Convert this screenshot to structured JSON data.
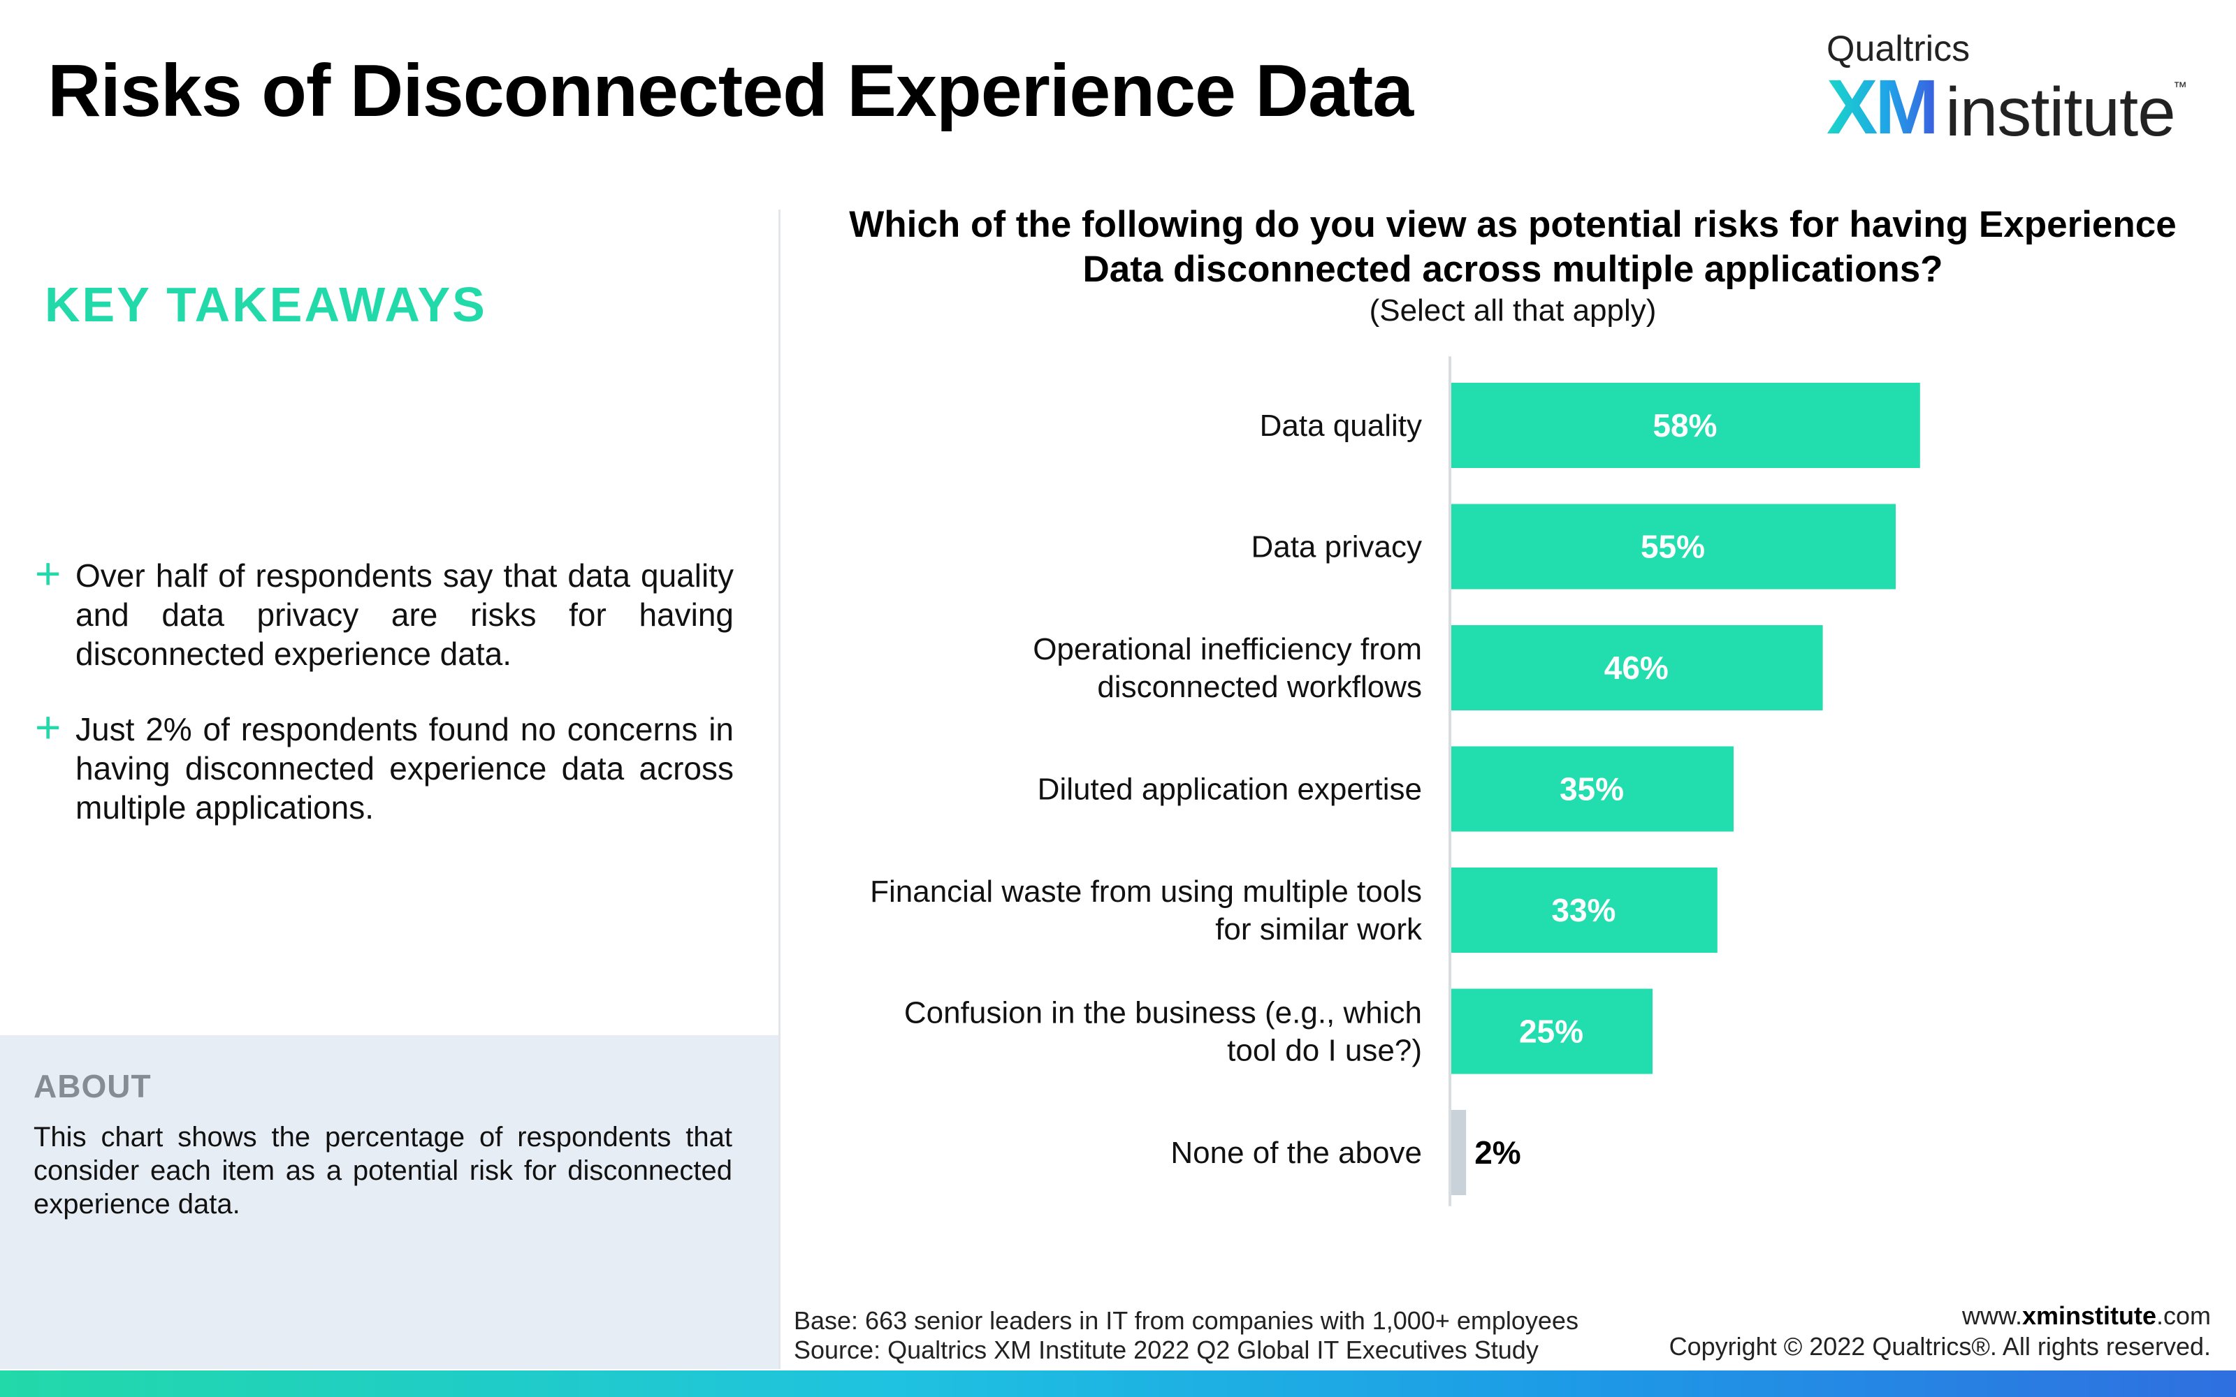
{
  "page": {
    "title": "Risks of Disconnected Experience Data"
  },
  "logo": {
    "brand": "Qualtrics",
    "xm": "XM",
    "institute": "institute",
    "tm": "™"
  },
  "takeaways": {
    "title": "KEY TAKEAWAYS",
    "items": [
      "Over half of respondents say that data quality and data privacy are risks for having disconnected experience data.",
      "Just 2% of respondents found no concerns in having disconnected experience data across multiple applications."
    ]
  },
  "about": {
    "title": "ABOUT",
    "text": "This chart shows the percentage of respondents that consider each item as a potential risk for disconnected experience data."
  },
  "chart_data": {
    "type": "bar",
    "orientation": "horizontal",
    "title": "Which of the following do you view as potential risks for having Experience Data disconnected across multiple applications?",
    "subtitle": "(Select all that apply)",
    "categories": [
      [
        "Data quality"
      ],
      [
        "Data privacy"
      ],
      [
        "Operational inefficiency from",
        "disconnected workflows"
      ],
      [
        "Diluted application expertise"
      ],
      [
        "Financial waste from using multiple tools",
        "for similar work"
      ],
      [
        "Confusion in the business (e.g., which",
        "tool do I use?)"
      ],
      [
        "None of the above"
      ]
    ],
    "values": [
      58,
      55,
      46,
      35,
      33,
      25,
      2
    ],
    "data_labels": [
      "58%",
      "55%",
      "46%",
      "35%",
      "33%",
      "25%",
      "2%"
    ],
    "unit": "%",
    "xlim": [
      0,
      100
    ],
    "colors": {
      "bar": "#22ddae",
      "bar_none": "#c9d1d9",
      "label_inside": "#ffffff",
      "label_outside": "#000000",
      "axis": "#d8dde2"
    }
  },
  "footer": {
    "base": "Base: 663 senior leaders in IT from companies with 1,000+ employees",
    "source": "Source: Qualtrics XM Institute 2022 Q2 Global IT Executives Study",
    "site_prefix": "www.",
    "site_bold": "xminstitute",
    "site_suffix": ".com",
    "copyright": "Copyright © 2022 Qualtrics®. All rights reserved."
  }
}
